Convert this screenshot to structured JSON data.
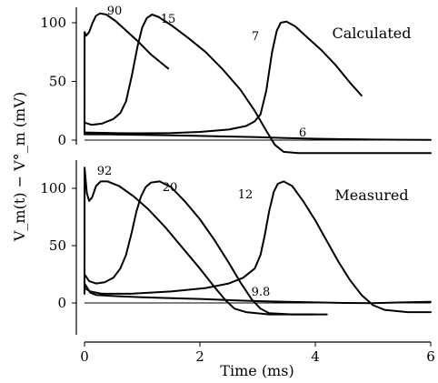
{
  "chart_data": {
    "type": "line",
    "xlabel": "Time (ms)",
    "ylabel": "V_m(t) − V°_m (mV)",
    "xlim": [
      0,
      6
    ],
    "xticks": [
      0,
      2,
      4,
      6
    ],
    "yticks": [
      0,
      50,
      100
    ],
    "panels": [
      {
        "label": "Calculated",
        "ylim": [
          -10,
          108
        ],
        "series": [
          {
            "name": "90",
            "points": [
              [
                0,
                6
              ],
              [
                0.001,
                92
              ],
              [
                0.03,
                89
              ],
              [
                0.08,
                92
              ],
              [
                0.14,
                100
              ],
              [
                0.2,
                106
              ],
              [
                0.27,
                108
              ],
              [
                0.38,
                107
              ],
              [
                0.55,
                101
              ],
              [
                0.75,
                92
              ],
              [
                0.95,
                83
              ],
              [
                1.15,
                73
              ],
              [
                1.35,
                65
              ],
              [
                1.45,
                61
              ]
            ]
          },
          {
            "name": "15",
            "points": [
              [
                0,
                15
              ],
              [
                0.12,
                13
              ],
              [
                0.3,
                14
              ],
              [
                0.5,
                18
              ],
              [
                0.62,
                23
              ],
              [
                0.72,
                33
              ],
              [
                0.82,
                55
              ],
              [
                0.92,
                80
              ],
              [
                1.0,
                96
              ],
              [
                1.08,
                104
              ],
              [
                1.17,
                107
              ],
              [
                1.28,
                105
              ],
              [
                1.5,
                98
              ],
              [
                1.8,
                87
              ],
              [
                2.1,
                75
              ],
              [
                2.4,
                60
              ],
              [
                2.7,
                43
              ],
              [
                2.95,
                25
              ],
              [
                3.15,
                8
              ],
              [
                3.3,
                -4
              ],
              [
                3.45,
                -10
              ],
              [
                3.7,
                -11
              ],
              [
                4.5,
                -11
              ],
              [
                5.5,
                -11
              ],
              [
                6,
                -11
              ]
            ]
          },
          {
            "name": "7",
            "points": [
              [
                0,
                6.5
              ],
              [
                0.5,
                6
              ],
              [
                1.0,
                5.8
              ],
              [
                1.5,
                6
              ],
              [
                2.0,
                7
              ],
              [
                2.5,
                9
              ],
              [
                2.8,
                12
              ],
              [
                2.95,
                16
              ],
              [
                3.05,
                22
              ],
              [
                3.15,
                42
              ],
              [
                3.25,
                75
              ],
              [
                3.33,
                93
              ],
              [
                3.4,
                100
              ],
              [
                3.5,
                101
              ],
              [
                3.65,
                97
              ],
              [
                3.85,
                88
              ],
              [
                4.1,
                77
              ],
              [
                4.35,
                64
              ],
              [
                4.6,
                49
              ],
              [
                4.8,
                38
              ]
            ]
          },
          {
            "name": "6",
            "points": [
              [
                0,
                5
              ],
              [
                0.5,
                4.8
              ],
              [
                1,
                4.5
              ],
              [
                1.5,
                4
              ],
              [
                2,
                3.6
              ],
              [
                2.5,
                3
              ],
              [
                3,
                2.5
              ],
              [
                3.5,
                1.8
              ],
              [
                4,
                1.2
              ],
              [
                4.5,
                0.8
              ],
              [
                5,
                0.5
              ],
              [
                5.5,
                0.3
              ],
              [
                6,
                0.2
              ]
            ]
          }
        ]
      },
      {
        "label": "Measured",
        "ylim": [
          -15,
          125
        ],
        "series": [
          {
            "name": "92",
            "points": [
              [
                0,
                8
              ],
              [
                0.001,
                118
              ],
              [
                0.04,
                96
              ],
              [
                0.08,
                89
              ],
              [
                0.13,
                92
              ],
              [
                0.2,
                102
              ],
              [
                0.28,
                106
              ],
              [
                0.4,
                106
              ],
              [
                0.6,
                102
              ],
              [
                0.85,
                93
              ],
              [
                1.1,
                82
              ],
              [
                1.4,
                66
              ],
              [
                1.7,
                48
              ],
              [
                2.0,
                30
              ],
              [
                2.25,
                14
              ],
              [
                2.45,
                2
              ],
              [
                2.6,
                -5
              ],
              [
                2.8,
                -8
              ],
              [
                3.2,
                -10
              ],
              [
                3.6,
                -10
              ],
              [
                4.0,
                -10
              ]
            ]
          },
          {
            "name": "20",
            "points": [
              [
                0,
                25
              ],
              [
                0.08,
                19
              ],
              [
                0.2,
                17
              ],
              [
                0.35,
                18
              ],
              [
                0.5,
                22
              ],
              [
                0.62,
                30
              ],
              [
                0.72,
                42
              ],
              [
                0.82,
                62
              ],
              [
                0.9,
                80
              ],
              [
                0.98,
                93
              ],
              [
                1.06,
                101
              ],
              [
                1.15,
                105
              ],
              [
                1.3,
                106
              ],
              [
                1.5,
                101
              ],
              [
                1.75,
                88
              ],
              [
                2.0,
                73
              ],
              [
                2.25,
                55
              ],
              [
                2.5,
                35
              ],
              [
                2.7,
                18
              ],
              [
                2.9,
                3
              ],
              [
                3.05,
                -5
              ],
              [
                3.2,
                -9
              ],
              [
                3.6,
                -10
              ],
              [
                4.2,
                -10
              ]
            ]
          },
          {
            "name": "12",
            "points": [
              [
                0,
                13
              ],
              [
                0.1,
                10
              ],
              [
                0.3,
                8
              ],
              [
                0.8,
                8
              ],
              [
                1.5,
                10
              ],
              [
                2.1,
                13
              ],
              [
                2.5,
                17
              ],
              [
                2.75,
                22
              ],
              [
                2.95,
                30
              ],
              [
                3.05,
                42
              ],
              [
                3.12,
                58
              ],
              [
                3.2,
                80
              ],
              [
                3.28,
                97
              ],
              [
                3.35,
                104
              ],
              [
                3.45,
                106
              ],
              [
                3.6,
                102
              ],
              [
                3.8,
                88
              ],
              [
                4.0,
                72
              ],
              [
                4.2,
                54
              ],
              [
                4.4,
                36
              ],
              [
                4.6,
                20
              ],
              [
                4.8,
                7
              ],
              [
                5.0,
                -2
              ],
              [
                5.2,
                -6
              ],
              [
                5.6,
                -8
              ],
              [
                6,
                -8
              ]
            ]
          },
          {
            "name": "9.8",
            "points": [
              [
                0,
                17
              ],
              [
                0.1,
                9
              ],
              [
                0.2,
                7
              ],
              [
                0.5,
                6
              ],
              [
                1.0,
                5
              ],
              [
                1.5,
                4.2
              ],
              [
                2.0,
                3.5
              ],
              [
                2.5,
                2.5
              ],
              [
                3.0,
                1.6
              ],
              [
                3.5,
                1
              ],
              [
                4.0,
                0.5
              ],
              [
                4.5,
                0
              ],
              [
                5.0,
                -0.2
              ],
              [
                5.5,
                0.5
              ],
              [
                6,
                1
              ]
            ]
          }
        ]
      }
    ]
  }
}
